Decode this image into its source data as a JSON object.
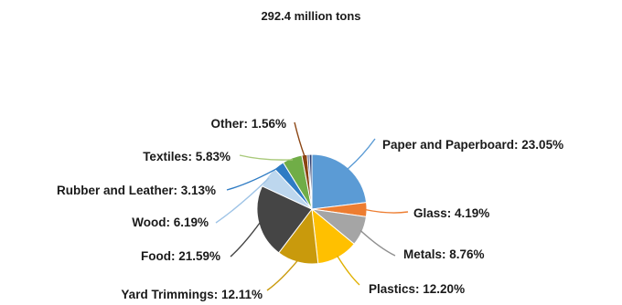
{
  "chart_data": {
    "type": "pie",
    "title": "292.4 million tons",
    "slices": [
      {
        "label": "Paper and Paperboard",
        "value": 23.05,
        "display": "Paper and Paperboard: 23.05%",
        "color": "#5b9bd5",
        "leader": "#5b9bd5"
      },
      {
        "label": "Glass",
        "value": 4.19,
        "display": "Glass: 4.19%",
        "color": "#ed7d31",
        "leader": "#ed7d31"
      },
      {
        "label": "Metals",
        "value": 8.76,
        "display": "Metals: 8.76%",
        "color": "#a5a5a5",
        "leader": "#8f8f8f"
      },
      {
        "label": "Plastics",
        "value": 12.2,
        "display": "Plastics: 12.20%",
        "color": "#ffc000",
        "leader": "#e0b000"
      },
      {
        "label": "Yard Trimmings",
        "value": 12.11,
        "display": "Yard Trimmings: 12.11%",
        "color": "#c99a0c",
        "leader": "#c99a0c"
      },
      {
        "label": "Food",
        "value": 21.59,
        "display": "Food: 21.59%",
        "color": "#454545",
        "leader": "#454545"
      },
      {
        "label": "Wood",
        "value": 6.19,
        "display": "Wood: 6.19%",
        "color": "#bdd7ee",
        "leader": "#9ec3e6"
      },
      {
        "label": "Rubber and Leather",
        "value": 3.13,
        "display": "Rubber and Leather: 3.13%",
        "color": "#2f7cc4",
        "leader": "#2f7cc4"
      },
      {
        "label": "Textiles",
        "value": 5.83,
        "display": "Textiles: 5.83%",
        "color": "#70ad47",
        "leader": "#a9c97a"
      },
      {
        "label": "Other",
        "value": 1.56,
        "display": "Other: 1.56%",
        "color": "#8b4513",
        "leader": "#8b4513"
      },
      {
        "label": "",
        "value": 0.6,
        "display": "",
        "color": "#4a5a8a",
        "leader": ""
      },
      {
        "label": "",
        "value": 0.79,
        "display": "",
        "color": "#2e3e70",
        "leader": ""
      }
    ]
  }
}
